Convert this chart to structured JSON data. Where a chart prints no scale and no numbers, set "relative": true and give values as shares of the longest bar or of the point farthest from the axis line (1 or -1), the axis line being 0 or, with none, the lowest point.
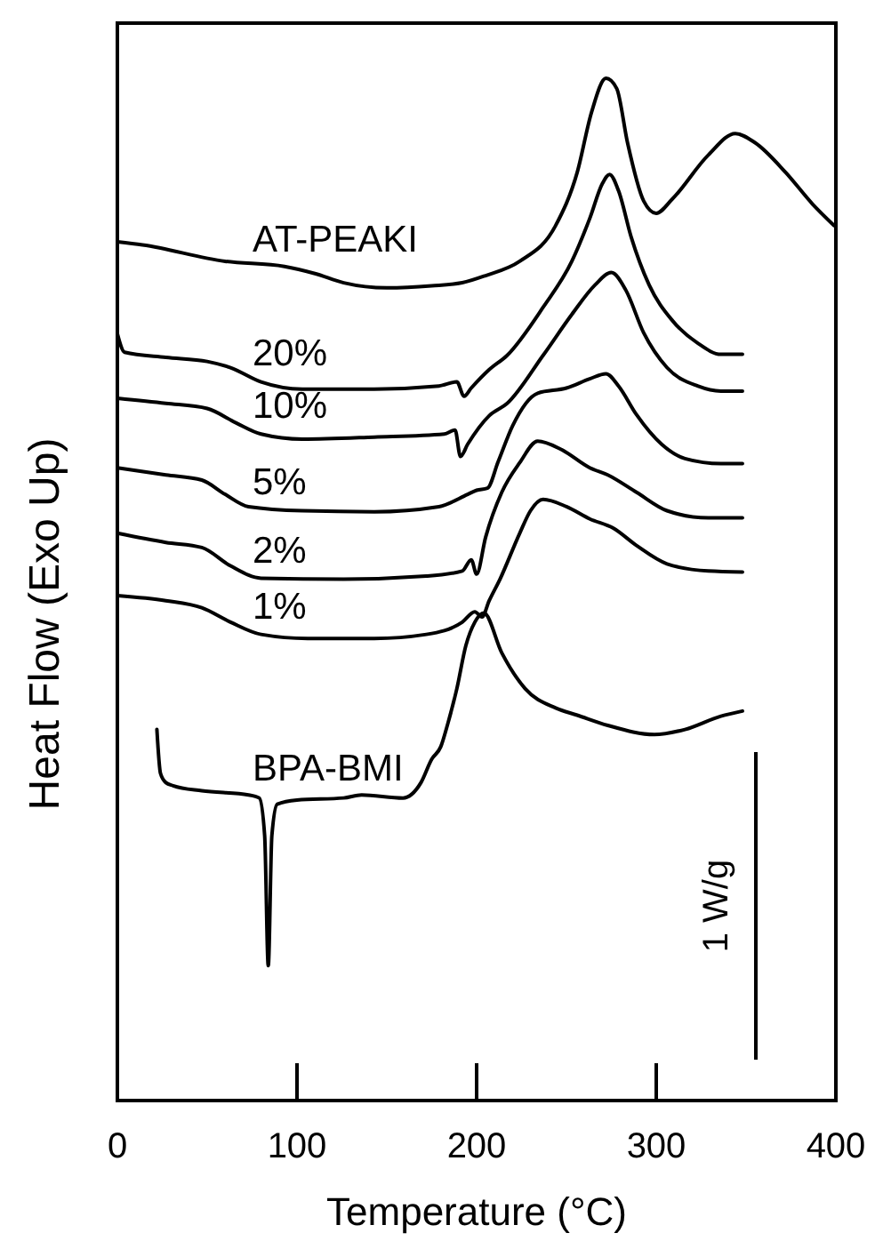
{
  "chart_data": {
    "type": "line",
    "xlabel": "Temperature (°C)",
    "ylabel": "Heat Flow (Exo Up)",
    "xlim": [
      0,
      400
    ],
    "xticks": [
      0,
      100,
      200,
      300,
      400
    ],
    "relative": true,
    "tick_labels": "x",
    "annotations": [
      "1 W/g"
    ],
    "series": [
      {
        "name": "AT-PEAKI",
        "color": "#000000",
        "x": [
          0,
          14,
          60,
          93,
          110,
          126,
          150,
          175,
          192,
          205,
          224,
          244,
          256,
          264,
          272,
          278,
          284,
          293,
          300,
          309,
          329,
          344,
          355,
          372,
          387,
          399
        ],
        "values": [
          0.84,
          0.837,
          0.821,
          0.816,
          0.809,
          0.8,
          0.795,
          0.797,
          0.8,
          0.807,
          0.821,
          0.856,
          0.908,
          0.967,
          1.0,
          0.99,
          0.937,
          0.88,
          0.868,
          0.882,
          0.925,
          0.946,
          0.937,
          0.908,
          0.877,
          0.856
        ]
      },
      {
        "name": "20%",
        "color": "#000000",
        "x": [
          0,
          4,
          27,
          50,
          63,
          80,
          103,
          143,
          179,
          189,
          193,
          197,
          207,
          217,
          237,
          253,
          263,
          270,
          274,
          279,
          286,
          296,
          309,
          323,
          336,
          348
        ],
        "values": [
          0.75,
          0.732,
          0.727,
          0.723,
          0.717,
          0.703,
          0.696,
          0.696,
          0.699,
          0.703,
          0.689,
          0.697,
          0.715,
          0.729,
          0.776,
          0.821,
          0.863,
          0.897,
          0.906,
          0.89,
          0.845,
          0.798,
          0.763,
          0.741,
          0.73,
          0.73
        ]
      },
      {
        "name": "10%",
        "color": "#000000",
        "x": [
          0,
          27,
          50,
          66,
          80,
          103,
          143,
          182,
          188,
          191,
          195,
          207,
          217,
          237,
          253,
          266,
          275,
          283,
          293,
          306,
          323,
          336,
          348
        ],
        "values": [
          0.687,
          0.682,
          0.677,
          0.663,
          0.652,
          0.647,
          0.649,
          0.652,
          0.656,
          0.63,
          0.642,
          0.67,
          0.682,
          0.729,
          0.769,
          0.798,
          0.81,
          0.793,
          0.751,
          0.717,
          0.699,
          0.694,
          0.694
        ]
      },
      {
        "name": "5%",
        "color": "#000000",
        "x": [
          0,
          27,
          47,
          60,
          73,
          103,
          143,
          179,
          195,
          200,
          206,
          212,
          220,
          234,
          250,
          263,
          272,
          279,
          289,
          303,
          316,
          336,
          348
        ],
        "values": [
          0.619,
          0.612,
          0.607,
          0.593,
          0.581,
          0.577,
          0.576,
          0.581,
          0.593,
          0.597,
          0.599,
          0.625,
          0.66,
          0.692,
          0.697,
          0.706,
          0.711,
          0.699,
          0.671,
          0.642,
          0.628,
          0.623,
          0.623
        ]
      },
      {
        "name": "2%",
        "color": "#000000",
        "x": [
          0,
          27,
          47,
          63,
          80,
          126,
          172,
          192,
          197,
          200,
          205,
          214,
          224,
          234,
          247,
          263,
          273,
          289,
          306,
          329,
          348
        ],
        "values": [
          0.555,
          0.546,
          0.541,
          0.523,
          0.511,
          0.51,
          0.513,
          0.518,
          0.529,
          0.515,
          0.551,
          0.595,
          0.624,
          0.645,
          0.637,
          0.619,
          0.612,
          0.595,
          0.577,
          0.57,
          0.57
        ]
      },
      {
        "name": "1%",
        "color": "#000000",
        "x": [
          0,
          27,
          47,
          63,
          80,
          106,
          143,
          172,
          192,
          199,
          203,
          207,
          213,
          224,
          230,
          237,
          250,
          263,
          276,
          289,
          306,
          329,
          348
        ],
        "values": [
          0.494,
          0.489,
          0.482,
          0.468,
          0.456,
          0.452,
          0.452,
          0.456,
          0.468,
          0.478,
          0.473,
          0.489,
          0.51,
          0.555,
          0.577,
          0.588,
          0.581,
          0.569,
          0.56,
          0.543,
          0.525,
          0.518,
          0.517
        ]
      },
      {
        "name": "BPA-BMI",
        "color": "#000000",
        "x": [
          22,
          24,
          27,
          31,
          47,
          73,
          79,
          82,
          84,
          86,
          89,
          100,
          126,
          136,
          159,
          169,
          175,
          180,
          184,
          189,
          194,
          199,
          204,
          214,
          227,
          244,
          256,
          273,
          299,
          316,
          336,
          348
        ],
        "values": [
          0.363,
          0.32,
          0.311,
          0.308,
          0.303,
          0.299,
          0.296,
          0.259,
          0.132,
          0.259,
          0.29,
          0.294,
          0.296,
          0.299,
          0.296,
          0.311,
          0.334,
          0.346,
          0.369,
          0.403,
          0.445,
          0.468,
          0.477,
          0.438,
          0.403,
          0.384,
          0.377,
          0.367,
          0.358,
          0.363,
          0.376,
          0.381
        ]
      }
    ]
  }
}
